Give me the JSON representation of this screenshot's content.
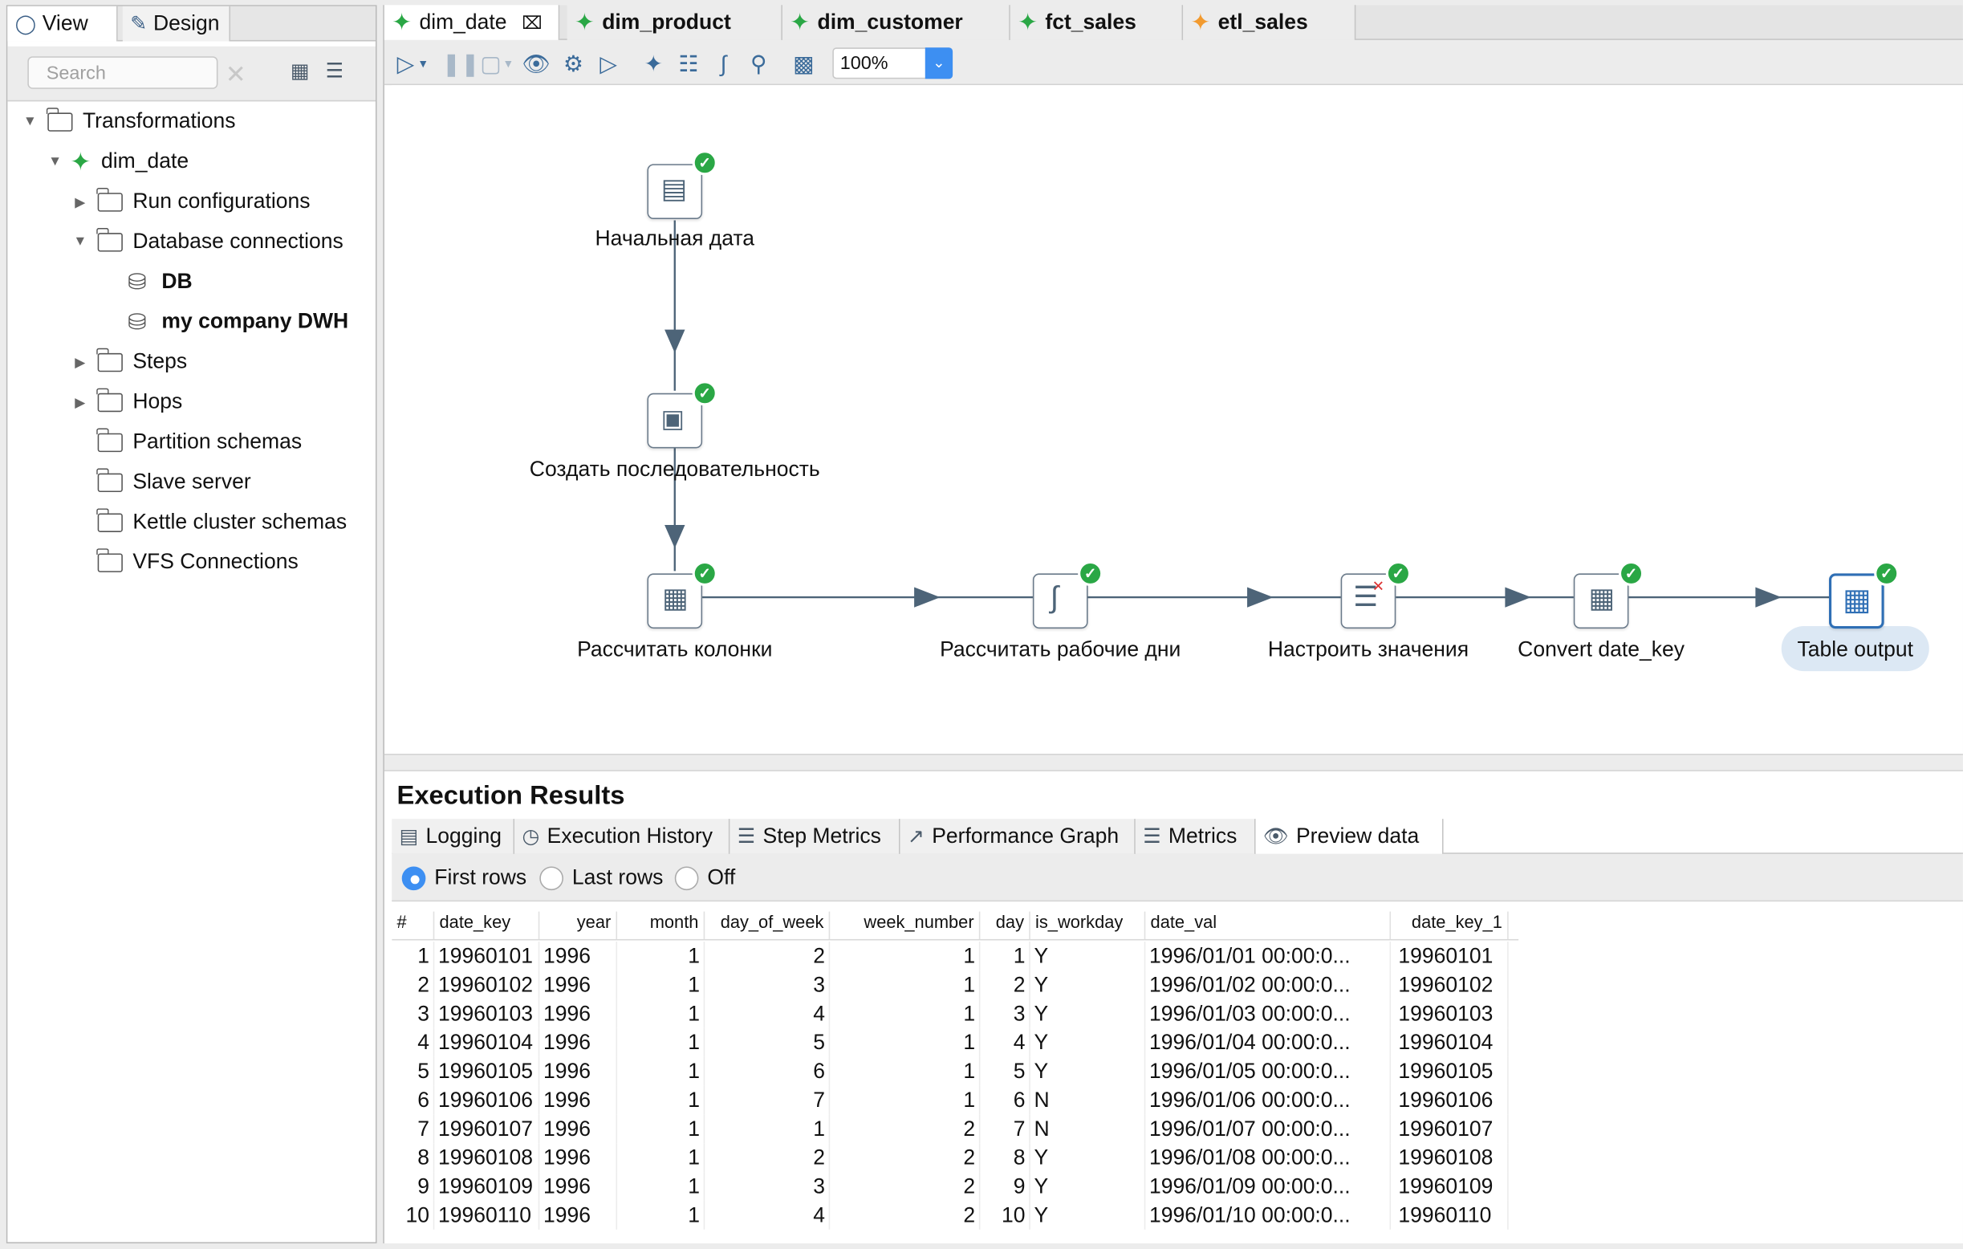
{
  "left_panel": {
    "tabs": {
      "view": "View",
      "design": "Design"
    },
    "search_placeholder": "Search",
    "tree": {
      "root": "Transformations",
      "transformation": "dim_date",
      "run_configurations": "Run configurations",
      "database_connections": "Database connections",
      "db1": "DB",
      "db2": "my company DWH",
      "steps": "Steps",
      "hops": "Hops",
      "partition_schemas": "Partition schemas",
      "slave_server": "Slave server",
      "kettle_cluster_schemas": "Kettle cluster schemas",
      "vfs_connections": "VFS Connections"
    }
  },
  "editor_tabs": [
    {
      "label": "dim_date",
      "icon": "transformation-icon"
    },
    {
      "label": "dim_product",
      "icon": "transformation-icon"
    },
    {
      "label": "dim_customer",
      "icon": "transformation-icon"
    },
    {
      "label": "fct_sales",
      "icon": "transformation-icon"
    },
    {
      "label": "etl_sales",
      "icon": "job-icon"
    }
  ],
  "toolbar": {
    "zoom": "100%"
  },
  "steps": {
    "start_date": "Начальная дата",
    "create_sequence": "Создать последовательность",
    "calc_columns": "Рассчитать колонки",
    "calc_workdays": "Рассчитать рабочие дни",
    "set_values": "Настроить значения",
    "convert_key": "Convert date_key",
    "table_output": "Table output"
  },
  "results": {
    "title": "Execution Results",
    "tabs": {
      "logging": "Logging",
      "history": "Execution History",
      "step_metrics": "Step Metrics",
      "perf_graph": "Performance Graph",
      "metrics": "Metrics",
      "preview": "Preview data"
    },
    "options": {
      "first": "First rows",
      "last": "Last rows",
      "off": "Off"
    },
    "columns": [
      "#",
      "date_key",
      "year",
      "month",
      "day_of_week",
      "week_number",
      "day",
      "is_workday",
      "date_val",
      "date_key_1"
    ],
    "rows": [
      [
        "1",
        "19960101",
        "1996",
        "1",
        "2",
        "1",
        "1",
        "Y",
        "1996/01/01 00:00:0...",
        "19960101"
      ],
      [
        "2",
        "19960102",
        "1996",
        "1",
        "3",
        "1",
        "2",
        "Y",
        "1996/01/02 00:00:0...",
        "19960102"
      ],
      [
        "3",
        "19960103",
        "1996",
        "1",
        "4",
        "1",
        "3",
        "Y",
        "1996/01/03 00:00:0...",
        "19960103"
      ],
      [
        "4",
        "19960104",
        "1996",
        "1",
        "5",
        "1",
        "4",
        "Y",
        "1996/01/04 00:00:0...",
        "19960104"
      ],
      [
        "5",
        "19960105",
        "1996",
        "1",
        "6",
        "1",
        "5",
        "Y",
        "1996/01/05 00:00:0...",
        "19960105"
      ],
      [
        "6",
        "19960106",
        "1996",
        "1",
        "7",
        "1",
        "6",
        "N",
        "1996/01/06 00:00:0...",
        "19960106"
      ],
      [
        "7",
        "19960107",
        "1996",
        "1",
        "1",
        "2",
        "7",
        "N",
        "1996/01/07 00:00:0...",
        "19960107"
      ],
      [
        "8",
        "19960108",
        "1996",
        "1",
        "2",
        "2",
        "8",
        "Y",
        "1996/01/08 00:00:0...",
        "19960108"
      ],
      [
        "9",
        "19960109",
        "1996",
        "1",
        "3",
        "2",
        "9",
        "Y",
        "1996/01/09 00:00:0...",
        "19960109"
      ],
      [
        "10",
        "19960110",
        "1996",
        "1",
        "4",
        "2",
        "10",
        "Y",
        "1996/01/10 00:00:0...",
        "19960110"
      ]
    ]
  }
}
